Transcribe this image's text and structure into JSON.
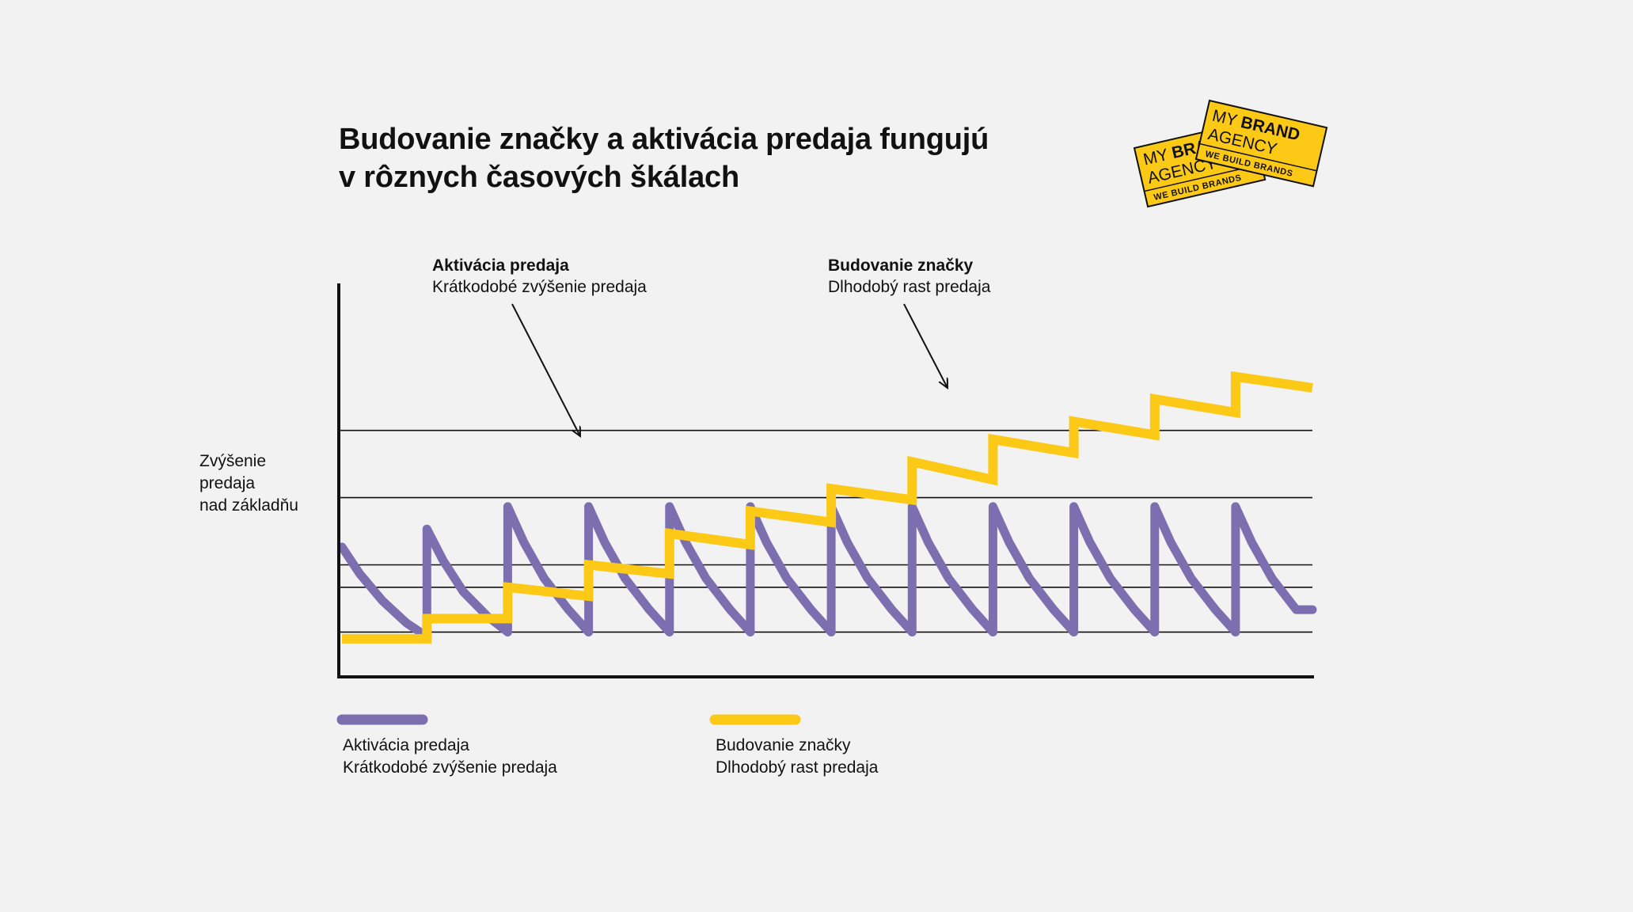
{
  "title_line1": "Budovanie značky a aktivácia predaja fungujú",
  "title_line2": "v rôznych časových škálach",
  "colors": {
    "activation": "#7b6fb0",
    "brand": "#fcc917",
    "axis": "#111111",
    "grid": "#111111",
    "background": "#f2f2f2"
  },
  "callouts": {
    "activation": {
      "title": "Aktivácia predaja",
      "subtitle": "Krátkodobé zvýšenie predaja"
    },
    "brand": {
      "title": "Budovanie značky",
      "subtitle": "Dlhodobý rast predaja"
    }
  },
  "ylabel": [
    "Zvýšenie",
    "predaja",
    "nad základňu"
  ],
  "legend": [
    {
      "series": "activation",
      "line1": "Aktivácia predaja",
      "line2": "Krátkodobé zvýšenie predaja"
    },
    {
      "series": "brand",
      "line1": "Budovanie značky",
      "line2": "Dlhodobý rast predaja"
    }
  ],
  "logo": {
    "front": {
      "line1_light": "MY",
      "line1_bold": "BRAND",
      "line2": "AGENCY",
      "tagline": "WE BUILD BRANDS"
    },
    "back": {
      "line1_light": "MY",
      "line1_bold": "BRAND",
      "line2": "AGENCY",
      "tagline": "WE BUILD BRANDS"
    }
  },
  "chart_data": {
    "type": "line",
    "xlim": [
      0,
      12
    ],
    "ylim": [
      0,
      10
    ],
    "grid": "horizontal",
    "gridlines": [
      1.0,
      2.0,
      2.5,
      4.0,
      5.5
    ],
    "series": [
      {
        "name": "Aktivácia predaja",
        "segments": [
          {
            "x": [
              0.0,
              0.22,
              0.5,
              0.8,
              1.05
            ],
            "y": [
              2.9,
              2.3,
              1.7,
              1.2,
              0.9
            ]
          },
          {
            "x": [
              1.05,
              1.05,
              1.25,
              1.5,
              1.8,
              2.05
            ],
            "y": [
              0.9,
              3.3,
              2.6,
              1.9,
              1.35,
              1.0
            ]
          },
          {
            "x": [
              2.05,
              2.05,
              2.25,
              2.5,
              2.8,
              3.05
            ],
            "y": [
              1.0,
              3.8,
              3.0,
              2.2,
              1.5,
              1.0
            ]
          },
          {
            "x": [
              3.05,
              3.05,
              3.25,
              3.5,
              3.8,
              4.05
            ],
            "y": [
              1.0,
              3.8,
              3.0,
              2.2,
              1.5,
              1.0
            ]
          },
          {
            "x": [
              4.05,
              4.05,
              4.25,
              4.5,
              4.8,
              5.05
            ],
            "y": [
              1.0,
              3.8,
              3.0,
              2.2,
              1.5,
              1.0
            ]
          },
          {
            "x": [
              5.05,
              5.05,
              5.25,
              5.5,
              5.8,
              6.05
            ],
            "y": [
              1.0,
              3.8,
              3.0,
              2.2,
              1.5,
              1.0
            ]
          },
          {
            "x": [
              6.05,
              6.05,
              6.25,
              6.5,
              6.8,
              7.05
            ],
            "y": [
              1.0,
              3.8,
              3.0,
              2.2,
              1.5,
              1.0
            ]
          },
          {
            "x": [
              7.05,
              7.05,
              7.25,
              7.5,
              7.8,
              8.05
            ],
            "y": [
              1.0,
              3.8,
              3.0,
              2.2,
              1.5,
              1.0
            ]
          },
          {
            "x": [
              8.05,
              8.05,
              8.25,
              8.5,
              8.8,
              9.05
            ],
            "y": [
              1.0,
              3.8,
              3.0,
              2.2,
              1.5,
              1.0
            ]
          },
          {
            "x": [
              9.05,
              9.05,
              9.25,
              9.5,
              9.8,
              10.05
            ],
            "y": [
              1.0,
              3.8,
              3.0,
              2.2,
              1.5,
              1.0
            ]
          },
          {
            "x": [
              10.05,
              10.05,
              10.25,
              10.5,
              10.8,
              11.05
            ],
            "y": [
              1.0,
              3.8,
              3.0,
              2.2,
              1.5,
              1.0
            ]
          },
          {
            "x": [
              11.05,
              11.05,
              11.25,
              11.5,
              11.8,
              12.0
            ],
            "y": [
              1.0,
              3.8,
              3.0,
              2.2,
              1.5,
              1.5
            ]
          }
        ]
      },
      {
        "name": "Budovanie značky",
        "x": [
          0.0,
          1.05,
          1.05,
          2.05,
          2.05,
          3.05,
          3.05,
          4.05,
          4.05,
          5.05,
          5.05,
          6.05,
          6.05,
          7.05,
          7.05,
          8.05,
          8.05,
          9.05,
          9.05,
          10.05,
          10.05,
          11.05,
          11.05,
          12.0
        ],
        "y": [
          0.85,
          0.85,
          1.3,
          1.3,
          2.0,
          1.8,
          2.5,
          2.3,
          3.2,
          2.95,
          3.7,
          3.45,
          4.2,
          3.95,
          4.8,
          4.4,
          5.3,
          5.0,
          5.7,
          5.4,
          6.2,
          5.9,
          6.7,
          6.45
        ]
      }
    ]
  }
}
